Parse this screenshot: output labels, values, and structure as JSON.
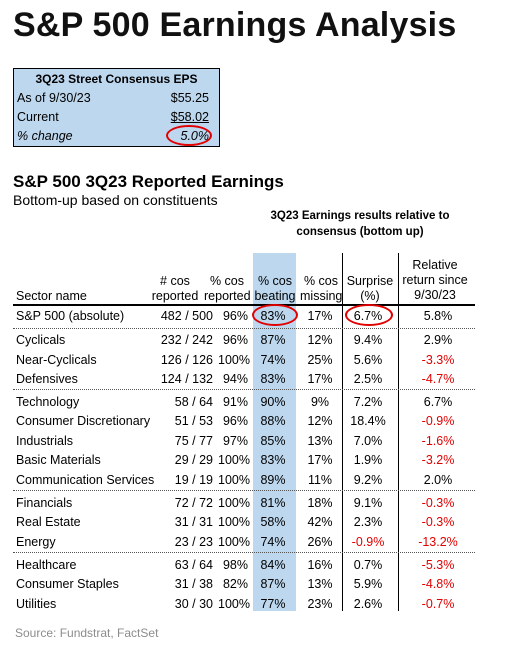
{
  "title": "S&P 500 Earnings Analysis",
  "eps_box": {
    "header": "3Q23 Street Consensus EPS",
    "rows": [
      {
        "label": "As of 9/30/23",
        "value": "$55.25"
      },
      {
        "label": "Current",
        "value": "$58.02"
      },
      {
        "label": "% change",
        "value": "5.0%"
      }
    ]
  },
  "section": {
    "title": "S&P 500 3Q23 Reported Earnings",
    "subtitle": "Bottom-up based on constituents",
    "results_note": "3Q23 Earnings results relative to consensus (bottom up)"
  },
  "table": {
    "headers": [
      "Sector name",
      "# cos reported",
      "% cos reported",
      "% cos beating",
      "% cos missing",
      "Surprise (%)",
      "Relative return since 9/30/23"
    ],
    "rows": [
      [
        "S&P 500 (absolute)",
        "482 / 500",
        "96%",
        "83%",
        "17%",
        "6.7%",
        "5.8%"
      ],
      [
        "Cyclicals",
        "232 / 242",
        "96%",
        "87%",
        "12%",
        "9.4%",
        "2.9%"
      ],
      [
        "Near-Cyclicals",
        "126 / 126",
        "100%",
        "74%",
        "25%",
        "5.6%",
        "-3.3%"
      ],
      [
        "Defensives",
        "124 / 132",
        "94%",
        "83%",
        "17%",
        "2.5%",
        "-4.7%"
      ],
      [
        "Technology",
        "58 / 64",
        "91%",
        "90%",
        "9%",
        "7.2%",
        "6.7%"
      ],
      [
        "Consumer Discretionary",
        "51 / 53",
        "96%",
        "88%",
        "12%",
        "18.4%",
        "-0.9%"
      ],
      [
        "Industrials",
        "75 / 77",
        "97%",
        "85%",
        "13%",
        "7.0%",
        "-1.6%"
      ],
      [
        "Basic Materials",
        "29 / 29",
        "100%",
        "83%",
        "17%",
        "1.9%",
        "-3.2%"
      ],
      [
        "Communication Services",
        "19 / 19",
        "100%",
        "89%",
        "11%",
        "9.2%",
        "2.0%"
      ],
      [
        "Financials",
        "72 / 72",
        "100%",
        "81%",
        "18%",
        "9.1%",
        "-0.3%"
      ],
      [
        "Real Estate",
        "31 / 31",
        "100%",
        "58%",
        "42%",
        "2.3%",
        "-0.3%"
      ],
      [
        "Energy",
        "23 / 23",
        "100%",
        "74%",
        "26%",
        "-0.9%",
        "-13.2%"
      ],
      [
        "Healthcare",
        "63 / 64",
        "98%",
        "84%",
        "16%",
        "0.7%",
        "-5.3%"
      ],
      [
        "Consumer Staples",
        "31 / 38",
        "82%",
        "87%",
        "13%",
        "5.9%",
        "-4.8%"
      ],
      [
        "Utilities",
        "30 / 30",
        "100%",
        "77%",
        "23%",
        "2.6%",
        "-0.7%"
      ]
    ]
  },
  "source": "Source: Fundstrat, FactSet",
  "colors": {
    "highlight": "#bdd7ee",
    "negative": "#e00000",
    "circle": "#e00000"
  }
}
